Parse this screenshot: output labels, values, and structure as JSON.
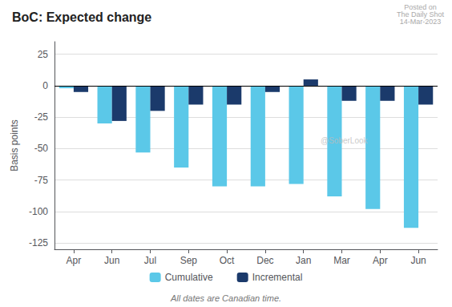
{
  "chart_data": {
    "type": "bar",
    "title": "BoC: Expected change",
    "ylabel": "Basis points",
    "categories": [
      "Apr",
      "Jun",
      "Jul",
      "Sep",
      "Oct",
      "Dec",
      "Jan",
      "Mar",
      "Apr",
      "Jun"
    ],
    "series": [
      {
        "name": "Cumulative",
        "color": "#5BC8E8",
        "values": [
          -2,
          -30,
          -53,
          -65,
          -80,
          -80,
          -78,
          -88,
          -98,
          -113
        ]
      },
      {
        "name": "Incremental",
        "color": "#1B3A6B",
        "values": [
          -5,
          -28,
          -20,
          -15,
          -15,
          -5,
          5,
          -12,
          -12,
          -15
        ]
      }
    ],
    "ylim": [
      -130,
      35
    ],
    "yticks": [
      25,
      0,
      -25,
      -50,
      -75,
      -100,
      -125
    ],
    "grid": true,
    "legend": "bottom",
    "annotations": [
      "Posted on\nThe Daily Shot\n14-Mar-2023",
      "@SoberLook"
    ],
    "footnote": "All dates are Canadian time."
  }
}
